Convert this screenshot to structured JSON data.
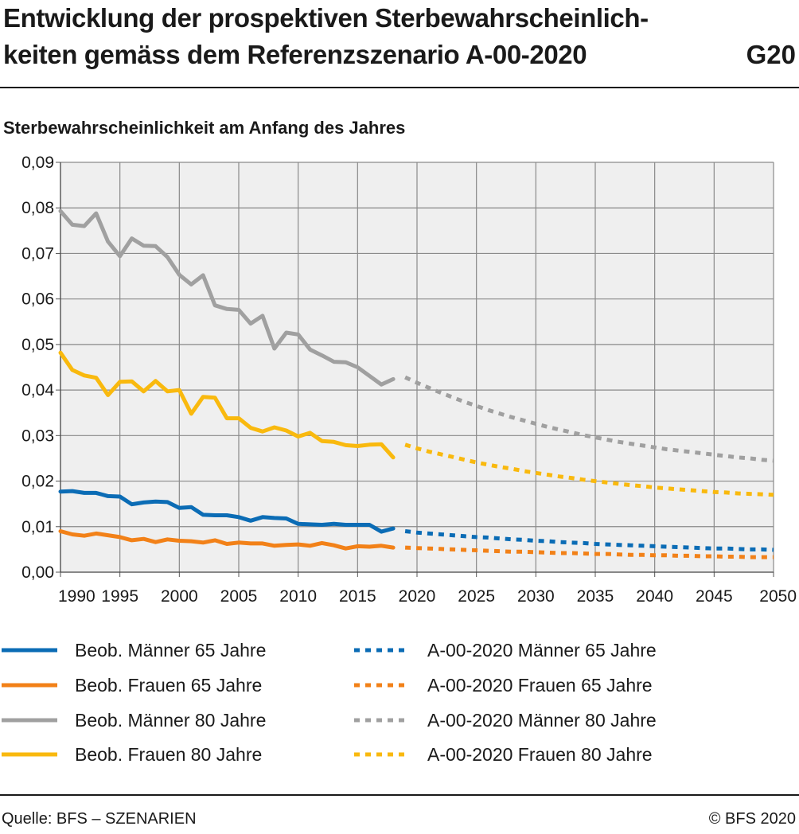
{
  "header": {
    "title_line1": "Entwicklung der prospektiven Sterbewahrscheinlich-",
    "title_line2": "keiten gemäss dem Referenzszenario A-00-2020",
    "figure_code": "G20"
  },
  "footer": {
    "source": "Quelle: BFS – SZENARIEN",
    "copyright": "© BFS 2020"
  },
  "chart_data": {
    "type": "line",
    "title": "Entwicklung der prospektiven Sterbewahrscheinlichkeiten gemäss dem Referenzszenario A-00-2020",
    "ylabel": "Sterbewahrscheinlichkeit am Anfang des Jahres",
    "xlabel": "",
    "xlim": [
      1990,
      2050
    ],
    "ylim": [
      0,
      0.09
    ],
    "x_ticks": [
      "1990",
      "1995",
      "2000",
      "2005",
      "2010",
      "2015",
      "2020",
      "2025",
      "2030",
      "2035",
      "2040",
      "2045",
      "2050"
    ],
    "y_ticks": [
      "0,00",
      "0,01",
      "0,02",
      "0,03",
      "0,04",
      "0,05",
      "0,06",
      "0,07",
      "0,08",
      "0,09"
    ],
    "grid": true,
    "legend_position": "bottom",
    "observed_x": [
      1990,
      1991,
      1992,
      1993,
      1994,
      1995,
      1996,
      1997,
      1998,
      1999,
      2000,
      2001,
      2002,
      2003,
      2004,
      2005,
      2006,
      2007,
      2008,
      2009,
      2010,
      2011,
      2012,
      2013,
      2014,
      2015,
      2016,
      2017,
      2018
    ],
    "scenario_x": [
      2019,
      2020,
      2021,
      2022,
      2023,
      2024,
      2025,
      2026,
      2027,
      2028,
      2029,
      2030,
      2031,
      2032,
      2033,
      2034,
      2035,
      2036,
      2037,
      2038,
      2039,
      2040,
      2041,
      2042,
      2043,
      2044,
      2045,
      2046,
      2047,
      2048,
      2049,
      2050
    ],
    "series": [
      {
        "name": "Beob. Männer 65 Jahre",
        "kind": "observed",
        "color": "#0b6cb5",
        "values": [
          0.0177,
          0.0178,
          0.0174,
          0.0174,
          0.0167,
          0.0166,
          0.0149,
          0.0153,
          0.0155,
          0.0154,
          0.0141,
          0.0143,
          0.0126,
          0.0125,
          0.0125,
          0.0121,
          0.0113,
          0.0121,
          0.0119,
          0.0118,
          0.0106,
          0.0105,
          0.0104,
          0.0106,
          0.0104,
          0.0104,
          0.0104,
          0.0089,
          0.0096
        ]
      },
      {
        "name": "Beob. Frauen 65 Jahre",
        "kind": "observed",
        "color": "#f28118",
        "values": [
          0.009,
          0.0083,
          0.008,
          0.0085,
          0.0081,
          0.0077,
          0.007,
          0.0073,
          0.0066,
          0.0072,
          0.0069,
          0.0068,
          0.0065,
          0.007,
          0.0062,
          0.0065,
          0.0063,
          0.0063,
          0.0058,
          0.006,
          0.0061,
          0.0058,
          0.0064,
          0.0059,
          0.0052,
          0.0057,
          0.0056,
          0.0058,
          0.0054
        ]
      },
      {
        "name": "Beob. Männer 80 Jahre",
        "kind": "observed",
        "color": "#a0a0a0",
        "values": [
          0.0793,
          0.0763,
          0.076,
          0.0788,
          0.0726,
          0.0694,
          0.0733,
          0.0717,
          0.0716,
          0.0692,
          0.0653,
          0.0632,
          0.0652,
          0.0586,
          0.0578,
          0.0576,
          0.0546,
          0.0563,
          0.0491,
          0.0526,
          0.0522,
          0.0489,
          0.0476,
          0.0462,
          0.0461,
          0.045,
          0.0431,
          0.0412,
          0.0424
        ]
      },
      {
        "name": "Beob. Frauen 80 Jahre",
        "kind": "observed",
        "color": "#f9b90e",
        "values": [
          0.0482,
          0.0444,
          0.0432,
          0.0427,
          0.0389,
          0.0418,
          0.0419,
          0.0397,
          0.042,
          0.0397,
          0.04,
          0.0348,
          0.0385,
          0.0383,
          0.0338,
          0.0338,
          0.0317,
          0.0309,
          0.0318,
          0.0311,
          0.0298,
          0.0306,
          0.0288,
          0.0286,
          0.0279,
          0.0277,
          0.028,
          0.0281,
          0.0252
        ]
      },
      {
        "name": "A-00-2020 Männer 65 Jahre",
        "kind": "scenario",
        "color": "#0b6cb5",
        "values": [
          0.009,
          0.0087,
          0.0085,
          0.0083,
          0.0081,
          0.0079,
          0.0077,
          0.0076,
          0.0074,
          0.0072,
          0.0071,
          0.0069,
          0.0068,
          0.0066,
          0.0065,
          0.0064,
          0.0062,
          0.0061,
          0.006,
          0.0059,
          0.0058,
          0.0057,
          0.0056,
          0.0055,
          0.0054,
          0.0053,
          0.0052,
          0.0052,
          0.0051,
          0.005,
          0.005,
          0.0049
        ]
      },
      {
        "name": "A-00-2020 Frauen 65 Jahre",
        "kind": "scenario",
        "color": "#f28118",
        "values": [
          0.0054,
          0.0053,
          0.0052,
          0.0051,
          0.005,
          0.0049,
          0.0048,
          0.0047,
          0.0046,
          0.0045,
          0.0045,
          0.0044,
          0.0043,
          0.0042,
          0.0042,
          0.0041,
          0.004,
          0.004,
          0.0039,
          0.0038,
          0.0038,
          0.0037,
          0.0037,
          0.0036,
          0.0036,
          0.0035,
          0.0035,
          0.0034,
          0.0034,
          0.0033,
          0.0033,
          0.0033
        ]
      },
      {
        "name": "A-00-2020 Männer 80 Jahre",
        "kind": "scenario",
        "color": "#a0a0a0",
        "values": [
          0.0428,
          0.0416,
          0.0405,
          0.0394,
          0.0384,
          0.0374,
          0.0365,
          0.0356,
          0.0348,
          0.034,
          0.0333,
          0.0326,
          0.0319,
          0.0313,
          0.0307,
          0.0301,
          0.0296,
          0.0291,
          0.0286,
          0.0282,
          0.0278,
          0.0274,
          0.027,
          0.0267,
          0.0264,
          0.0261,
          0.0258,
          0.0255,
          0.0252,
          0.025,
          0.0247,
          0.0245
        ]
      },
      {
        "name": "A-00-2020 Frauen 80 Jahre",
        "kind": "scenario",
        "color": "#f9b90e",
        "values": [
          0.028,
          0.0272,
          0.0265,
          0.0259,
          0.0253,
          0.0247,
          0.0241,
          0.0236,
          0.0231,
          0.0227,
          0.0222,
          0.0218,
          0.0214,
          0.021,
          0.0207,
          0.0203,
          0.02,
          0.0197,
          0.0194,
          0.0191,
          0.0189,
          0.0186,
          0.0184,
          0.0182,
          0.018,
          0.0178,
          0.0176,
          0.0175,
          0.0173,
          0.0172,
          0.0171,
          0.017
        ]
      }
    ]
  }
}
